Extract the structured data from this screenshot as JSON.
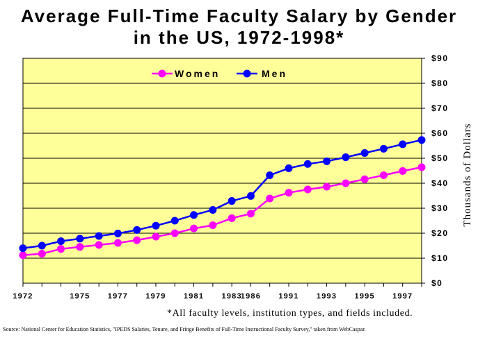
{
  "title_line1": "Average Full-Time Faculty Salary by Gender",
  "title_line2": "in the US, 1972-1998*",
  "footnote": "*All faculty levels, institution types, and fields included.",
  "source": "Source: National Center for Education Statistics, \"IPEDS Salaries, Tenure, and Fringe Benefits of Full-Time Instructional Faculty Survey,\"  taken from WebCaspar.",
  "chart_data": {
    "type": "line",
    "ylabel": "Thousands of Dollars",
    "xlabel": "",
    "ylim": [
      0,
      90
    ],
    "yticks": [
      "$0",
      "$10",
      "$20",
      "$30",
      "$40",
      "$50",
      "$60",
      "$70",
      "$80",
      "$90"
    ],
    "xtick_labels": [
      "1972",
      "1975",
      "1977",
      "1979",
      "1981",
      "1983",
      "1986",
      "1991",
      "1993",
      "1995",
      "1997"
    ],
    "legend_position": "top-center",
    "grid": "horizontal",
    "plot_background": "#FFFF99",
    "series": [
      {
        "name": "Women",
        "color": "#FF00FF",
        "values": [
          11.2,
          11.8,
          13.7,
          14.5,
          15.3,
          16.1,
          17.2,
          18.6,
          20.0,
          21.9,
          23.2,
          26.0,
          27.8,
          33.9,
          36.2,
          37.5,
          38.6,
          40.0,
          41.6,
          43.2,
          44.9,
          46.4
        ]
      },
      {
        "name": "Men",
        "color": "#0000FF",
        "values": [
          14.0,
          15.0,
          16.8,
          17.8,
          18.9,
          19.9,
          21.3,
          23.0,
          25.0,
          27.3,
          29.3,
          32.9,
          34.9,
          43.2,
          46.0,
          47.7,
          48.8,
          50.4,
          52.1,
          53.8,
          55.6,
          57.3
        ]
      }
    ]
  }
}
